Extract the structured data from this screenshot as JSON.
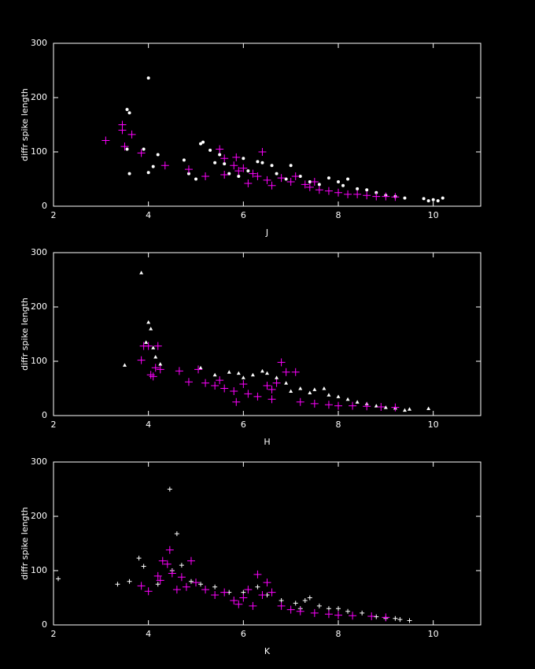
{
  "chart_data": [
    {
      "type": "scatter",
      "xlabel": "J",
      "ylabel": "diffr spike length",
      "xlim": [
        2,
        11
      ],
      "ylim": [
        0,
        300
      ],
      "xticks": [
        2,
        4,
        6,
        8,
        10
      ],
      "yticks": [
        0,
        100,
        200,
        300
      ],
      "series": [
        {
          "color": "#ffffff",
          "marker": "dot",
          "x": [
            3.55,
            3.6,
            4.0,
            3.55,
            3.9,
            4.2,
            4.0,
            4.1,
            3.6,
            4.75,
            4.85,
            5.0,
            5.1,
            5.15,
            5.3,
            5.4,
            5.5,
            5.6,
            5.7,
            5.9,
            6.0,
            6.1,
            6.3,
            6.4,
            6.6,
            6.7,
            6.9,
            7.0,
            7.2,
            7.4,
            7.6,
            7.8,
            8.0,
            8.1,
            8.2,
            8.4,
            8.6,
            8.8,
            9.0,
            9.2,
            9.4,
            9.8,
            10.0,
            10.1,
            10.2,
            9.9
          ],
          "values": [
            178,
            172,
            236,
            105,
            105,
            95,
            62,
            73,
            60,
            85,
            60,
            50,
            115,
            118,
            103,
            80,
            95,
            78,
            60,
            55,
            88,
            65,
            82,
            80,
            75,
            60,
            50,
            75,
            55,
            45,
            40,
            52,
            45,
            38,
            50,
            32,
            30,
            25,
            20,
            18,
            15,
            14,
            12,
            10,
            15,
            10
          ]
        },
        {
          "color": "#ff00ff",
          "marker": "plus",
          "x": [
            3.1,
            3.45,
            3.45,
            3.5,
            3.65,
            3.85,
            4.35,
            4.85,
            5.2,
            5.5,
            5.6,
            5.6,
            5.8,
            5.85,
            5.9,
            6.0,
            6.1,
            6.4,
            6.2,
            6.5,
            6.6,
            6.8,
            7.0,
            7.1,
            7.3,
            7.4,
            7.6,
            7.8,
            8.0,
            8.2,
            8.4,
            8.6,
            8.8,
            9.0,
            9.2,
            7.5,
            6.3
          ],
          "values": [
            121,
            150,
            140,
            110,
            132,
            98,
            75,
            68,
            55,
            105,
            88,
            58,
            75,
            90,
            65,
            70,
            42,
            100,
            60,
            48,
            38,
            52,
            45,
            55,
            40,
            35,
            30,
            28,
            25,
            22,
            22,
            20,
            18,
            18,
            17,
            45,
            55
          ]
        }
      ]
    },
    {
      "type": "scatter",
      "xlabel": "H",
      "ylabel": "diffr spike length",
      "xlim": [
        2,
        11
      ],
      "ylim": [
        0,
        300
      ],
      "xticks": [
        2,
        4,
        6,
        8,
        10
      ],
      "yticks": [
        0,
        100,
        200,
        300
      ],
      "series": [
        {
          "color": "#ffffff",
          "marker": "triangle",
          "x": [
            3.85,
            4.0,
            4.05,
            3.5,
            3.95,
            4.15,
            4.1,
            4.25,
            5.1,
            5.4,
            5.7,
            5.9,
            6.0,
            6.2,
            6.4,
            6.5,
            6.7,
            6.9,
            7.0,
            7.2,
            7.4,
            7.5,
            7.7,
            7.8,
            8.0,
            8.2,
            8.4,
            8.6,
            8.8,
            9.0,
            9.2,
            9.5,
            9.9,
            9.4
          ],
          "values": [
            263,
            172,
            160,
            93,
            135,
            108,
            125,
            95,
            88,
            75,
            80,
            78,
            70,
            75,
            82,
            78,
            70,
            60,
            45,
            50,
            42,
            48,
            50,
            38,
            35,
            30,
            25,
            22,
            18,
            15,
            14,
            12,
            13,
            10
          ]
        },
        {
          "color": "#ff00ff",
          "marker": "plus",
          "x": [
            3.85,
            3.9,
            4.0,
            4.05,
            4.1,
            4.15,
            4.2,
            4.25,
            4.65,
            4.85,
            5.05,
            5.2,
            5.4,
            5.6,
            5.8,
            5.85,
            6.0,
            6.1,
            6.3,
            6.5,
            6.6,
            6.7,
            6.8,
            6.9,
            7.1,
            7.2,
            7.5,
            7.8,
            8.0,
            8.3,
            8.6,
            8.9,
            9.2,
            6.6,
            5.5
          ],
          "values": [
            102,
            128,
            128,
            75,
            72,
            88,
            128,
            85,
            82,
            62,
            85,
            60,
            55,
            50,
            45,
            25,
            58,
            40,
            35,
            55,
            48,
            60,
            98,
            80,
            80,
            25,
            22,
            20,
            18,
            18,
            17,
            16,
            15,
            30,
            65
          ]
        }
      ]
    },
    {
      "type": "scatter",
      "xlabel": "K",
      "ylabel": "diffr spike length",
      "xlim": [
        2,
        11
      ],
      "ylim": [
        0,
        300
      ],
      "xticks": [
        2,
        4,
        6,
        8,
        10
      ],
      "yticks": [
        0,
        100,
        200,
        300
      ],
      "series": [
        {
          "color": "#ffffff",
          "marker": "smallplus",
          "x": [
            2.1,
            3.35,
            3.6,
            3.8,
            3.9,
            4.2,
            4.45,
            4.6,
            4.5,
            4.7,
            4.9,
            5.1,
            5.4,
            5.7,
            6.0,
            6.3,
            6.5,
            6.8,
            7.1,
            7.3,
            7.4,
            7.6,
            7.8,
            8.0,
            8.2,
            8.5,
            8.8,
            9.0,
            9.2,
            9.5,
            9.3,
            7.2
          ],
          "values": [
            85,
            75,
            80,
            123,
            108,
            75,
            250,
            168,
            100,
            110,
            80,
            75,
            70,
            60,
            60,
            70,
            55,
            45,
            40,
            45,
            50,
            35,
            30,
            30,
            25,
            22,
            15,
            12,
            12,
            8,
            10,
            30
          ]
        },
        {
          "color": "#ff00ff",
          "marker": "plus",
          "x": [
            3.85,
            4.0,
            4.2,
            4.25,
            4.3,
            4.4,
            4.45,
            4.5,
            4.6,
            4.7,
            4.8,
            4.9,
            5.0,
            5.2,
            5.4,
            5.6,
            5.8,
            6.0,
            6.1,
            6.3,
            6.4,
            6.5,
            6.6,
            6.8,
            7.0,
            7.2,
            7.5,
            7.8,
            8.0,
            8.3,
            8.7,
            9.0,
            5.9,
            6.2
          ],
          "values": [
            72,
            62,
            90,
            82,
            118,
            112,
            138,
            95,
            65,
            88,
            70,
            118,
            78,
            65,
            55,
            60,
            45,
            50,
            65,
            93,
            55,
            78,
            60,
            35,
            28,
            25,
            22,
            20,
            18,
            17,
            16,
            14,
            38,
            35
          ]
        }
      ]
    }
  ]
}
